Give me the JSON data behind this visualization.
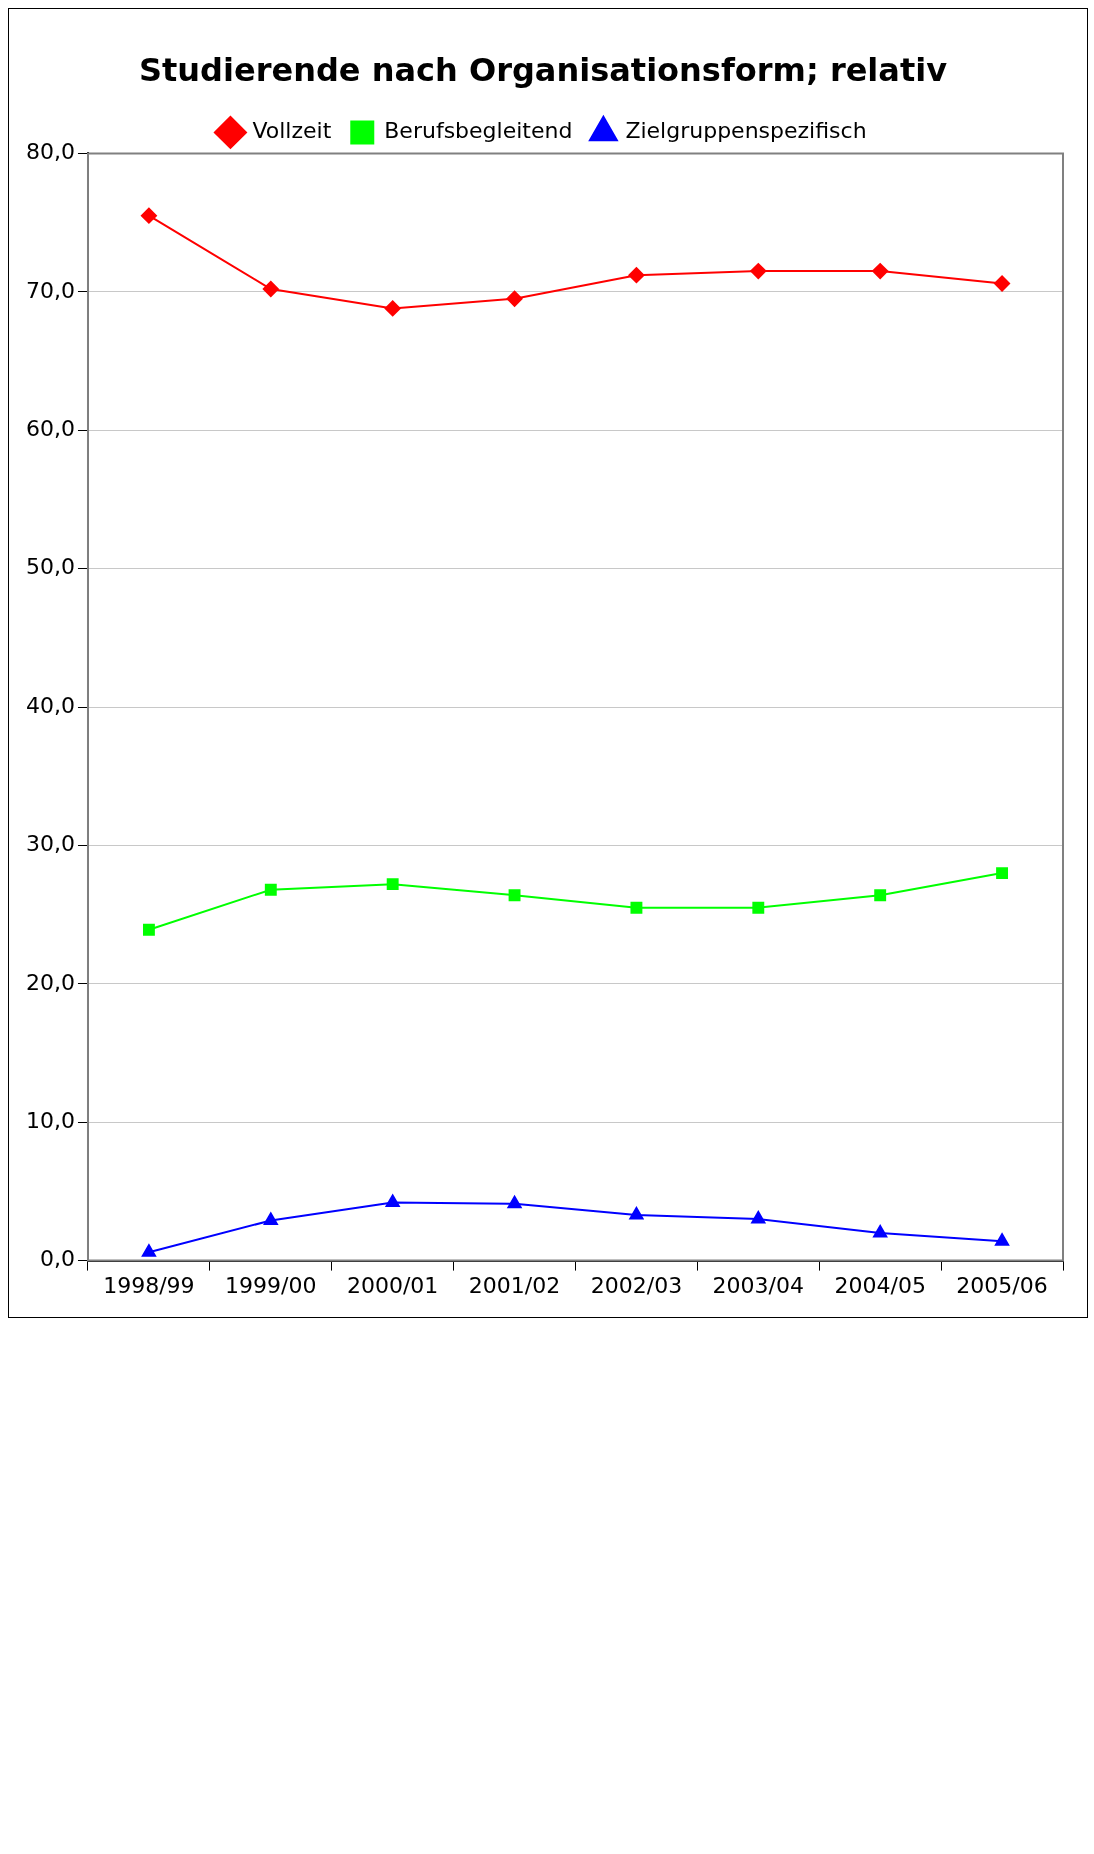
{
  "chart_data": {
    "type": "line",
    "title": "Studierende nach Organisationsform; relativ",
    "categories": [
      "1998/99",
      "1999/00",
      "2000/01",
      "2001/02",
      "2002/03",
      "2003/04",
      "2004/05",
      "2005/06"
    ],
    "series": [
      {
        "name": "Vollzeit",
        "color": "#ff0000",
        "marker": "diamond",
        "values": [
          75.5,
          70.2,
          68.8,
          69.5,
          71.2,
          71.5,
          71.5,
          70.6
        ]
      },
      {
        "name": "Berufsbegleitend",
        "color": "#00ff00",
        "marker": "square",
        "values": [
          23.9,
          26.8,
          27.2,
          26.4,
          25.5,
          25.5,
          26.4,
          28.0
        ]
      },
      {
        "name": "Zielgruppenspezifisch",
        "color": "#0000ff",
        "marker": "triangle",
        "values": [
          0.6,
          2.9,
          4.2,
          4.1,
          3.3,
          3.0,
          2.0,
          1.4
        ]
      }
    ],
    "ylim": [
      0,
      80
    ],
    "yticks": [
      {
        "value": 0,
        "label": "0,0"
      },
      {
        "value": 10,
        "label": "10,0"
      },
      {
        "value": 20,
        "label": "20,0"
      },
      {
        "value": 30,
        "label": "30,0"
      },
      {
        "value": 40,
        "label": "40,0"
      },
      {
        "value": 50,
        "label": "50,0"
      },
      {
        "value": 60,
        "label": "60,0"
      },
      {
        "value": 70,
        "label": "70,0"
      },
      {
        "value": 80,
        "label": "80,0"
      }
    ],
    "grid": "y",
    "legend": "top",
    "line_style": "solid"
  }
}
